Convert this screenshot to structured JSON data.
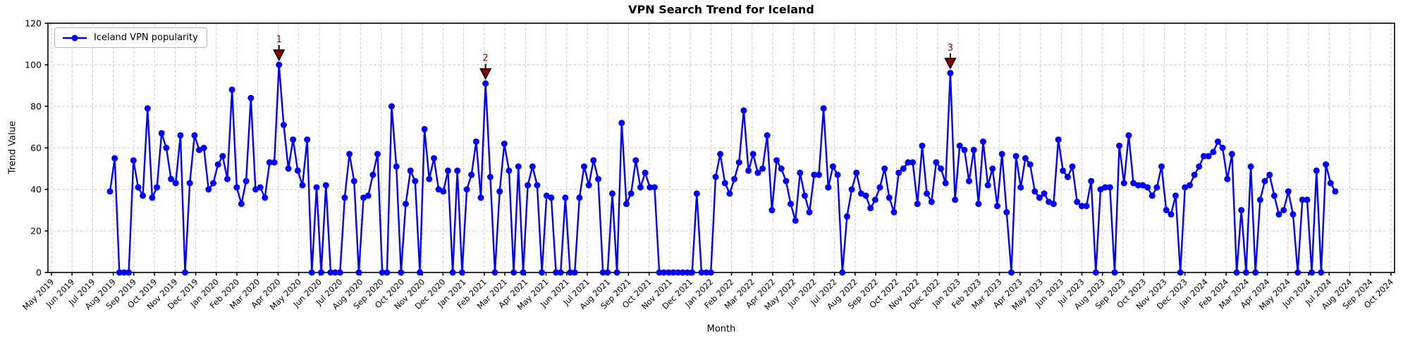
{
  "figure": {
    "title": "VPN Search Trend for Iceland",
    "x_axis_label": "Month",
    "y_axis_label": "Trend Value",
    "legend": {
      "label": "Iceland VPN popularity"
    }
  },
  "chart_data": {
    "type": "line",
    "title": "VPN Search Trend for Iceland",
    "xlabel": "Month",
    "ylabel": "Trend Value",
    "ylim": [
      0,
      120
    ],
    "y_ticks": [
      0,
      20,
      40,
      60,
      80,
      100,
      120
    ],
    "grid": true,
    "grid_style": "dashed",
    "legend_position": "upper left",
    "x_tick_labels": [
      "May 2019",
      "Jun 2019",
      "Jul 2019",
      "Aug 2019",
      "Sep 2019",
      "Oct 2019",
      "Nov 2019",
      "Dec 2019",
      "Jan 2020",
      "Feb 2020",
      "Mar 2020",
      "Apr 2020",
      "May 2020",
      "Jun 2020",
      "Jul 2020",
      "Aug 2020",
      "Sep 2020",
      "Oct 2020",
      "Nov 2020",
      "Dec 2020",
      "Jan 2021",
      "Feb 2021",
      "Mar 2021",
      "Apr 2021",
      "May 2021",
      "Jun 2021",
      "Jul 2021",
      "Aug 2021",
      "Sep 2021",
      "Oct 2021",
      "Nov 2021",
      "Dec 2021",
      "Jan 2022",
      "Feb 2022",
      "Mar 2022",
      "Apr 2022",
      "May 2022",
      "Jun 2022",
      "Jul 2022",
      "Aug 2022",
      "Sep 2022",
      "Oct 2022",
      "Nov 2022",
      "Dec 2022",
      "Jan 2023",
      "Feb 2023",
      "Mar 2023",
      "Apr 2023",
      "May 2023",
      "Jun 2023",
      "Jul 2023",
      "Aug 2023",
      "Sep 2023",
      "Oct 2023",
      "Nov 2023",
      "Dec 2023",
      "Jan 2024",
      "Feb 2024",
      "Mar 2024",
      "Apr 2024",
      "May 2024",
      "Jun 2024",
      "Jul 2024",
      "Aug 2024",
      "Sep 2024",
      "Oct 2024"
    ],
    "series": [
      {
        "name": "Iceland VPN popularity",
        "color": "#0000ff",
        "marker": "circle",
        "cadence": "weekly",
        "first_point_month": "Jul 2019",
        "last_point_month": "Jul 2024",
        "values": [
          39,
          55,
          0,
          0,
          0,
          54,
          41,
          37,
          79,
          36,
          41,
          67,
          60,
          45,
          43,
          66,
          0,
          43,
          66,
          59,
          60,
          40,
          43,
          52,
          56,
          45,
          88,
          41,
          33,
          44,
          84,
          40,
          41,
          36,
          53,
          53,
          100,
          71,
          50,
          64,
          49,
          42,
          64,
          0,
          41,
          0,
          42,
          0,
          0,
          0,
          36,
          57,
          44,
          0,
          36,
          37,
          47,
          57,
          0,
          0,
          80,
          51,
          0,
          33,
          49,
          44,
          0,
          69,
          45,
          55,
          40,
          39,
          49,
          0,
          49,
          0,
          40,
          47,
          63,
          36,
          91,
          46,
          0,
          39,
          62,
          49,
          0,
          51,
          0,
          42,
          51,
          42,
          0,
          37,
          36,
          0,
          0,
          36,
          0,
          0,
          36,
          51,
          42,
          54,
          45,
          0,
          0,
          38,
          0,
          72,
          33,
          38,
          54,
          41,
          48,
          41,
          41,
          0,
          0,
          0,
          0,
          0,
          0,
          0,
          0,
          38,
          0,
          0,
          0,
          46,
          57,
          43,
          38,
          45,
          53,
          78,
          49,
          57,
          48,
          50,
          66,
          30,
          54,
          50,
          44,
          33,
          25,
          48,
          37,
          29,
          47,
          47,
          79,
          41,
          51,
          47,
          0,
          27,
          40,
          48,
          38,
          37,
          31,
          35,
          41,
          50,
          36,
          29,
          48,
          50,
          53,
          53,
          33,
          61,
          38,
          34,
          53,
          50,
          43,
          96,
          35,
          61,
          59,
          44,
          59,
          33,
          63,
          42,
          50,
          32,
          57,
          29,
          0,
          56,
          41,
          55,
          52,
          39,
          36,
          38,
          34,
          33,
          64,
          49,
          46,
          51,
          34,
          32,
          32,
          44,
          0,
          40,
          41,
          41,
          0,
          61,
          43,
          66,
          43,
          42,
          42,
          41,
          37,
          41,
          51,
          30,
          28,
          37,
          0,
          41,
          42,
          47,
          51,
          56,
          56,
          58,
          63,
          60,
          45,
          57,
          0,
          30,
          0,
          51,
          0,
          35,
          44,
          47,
          37,
          28,
          30,
          39,
          28,
          0,
          35,
          35,
          0,
          49,
          0,
          52,
          43,
          39
        ]
      }
    ],
    "annotations": [
      {
        "label": "1",
        "index": 36,
        "value": 100
      },
      {
        "label": "2",
        "index": 80,
        "value": 91
      },
      {
        "label": "3",
        "index": 179,
        "value": 96
      }
    ],
    "annotation_color": "#8B0000",
    "annotation_edge_color": "#000000"
  }
}
